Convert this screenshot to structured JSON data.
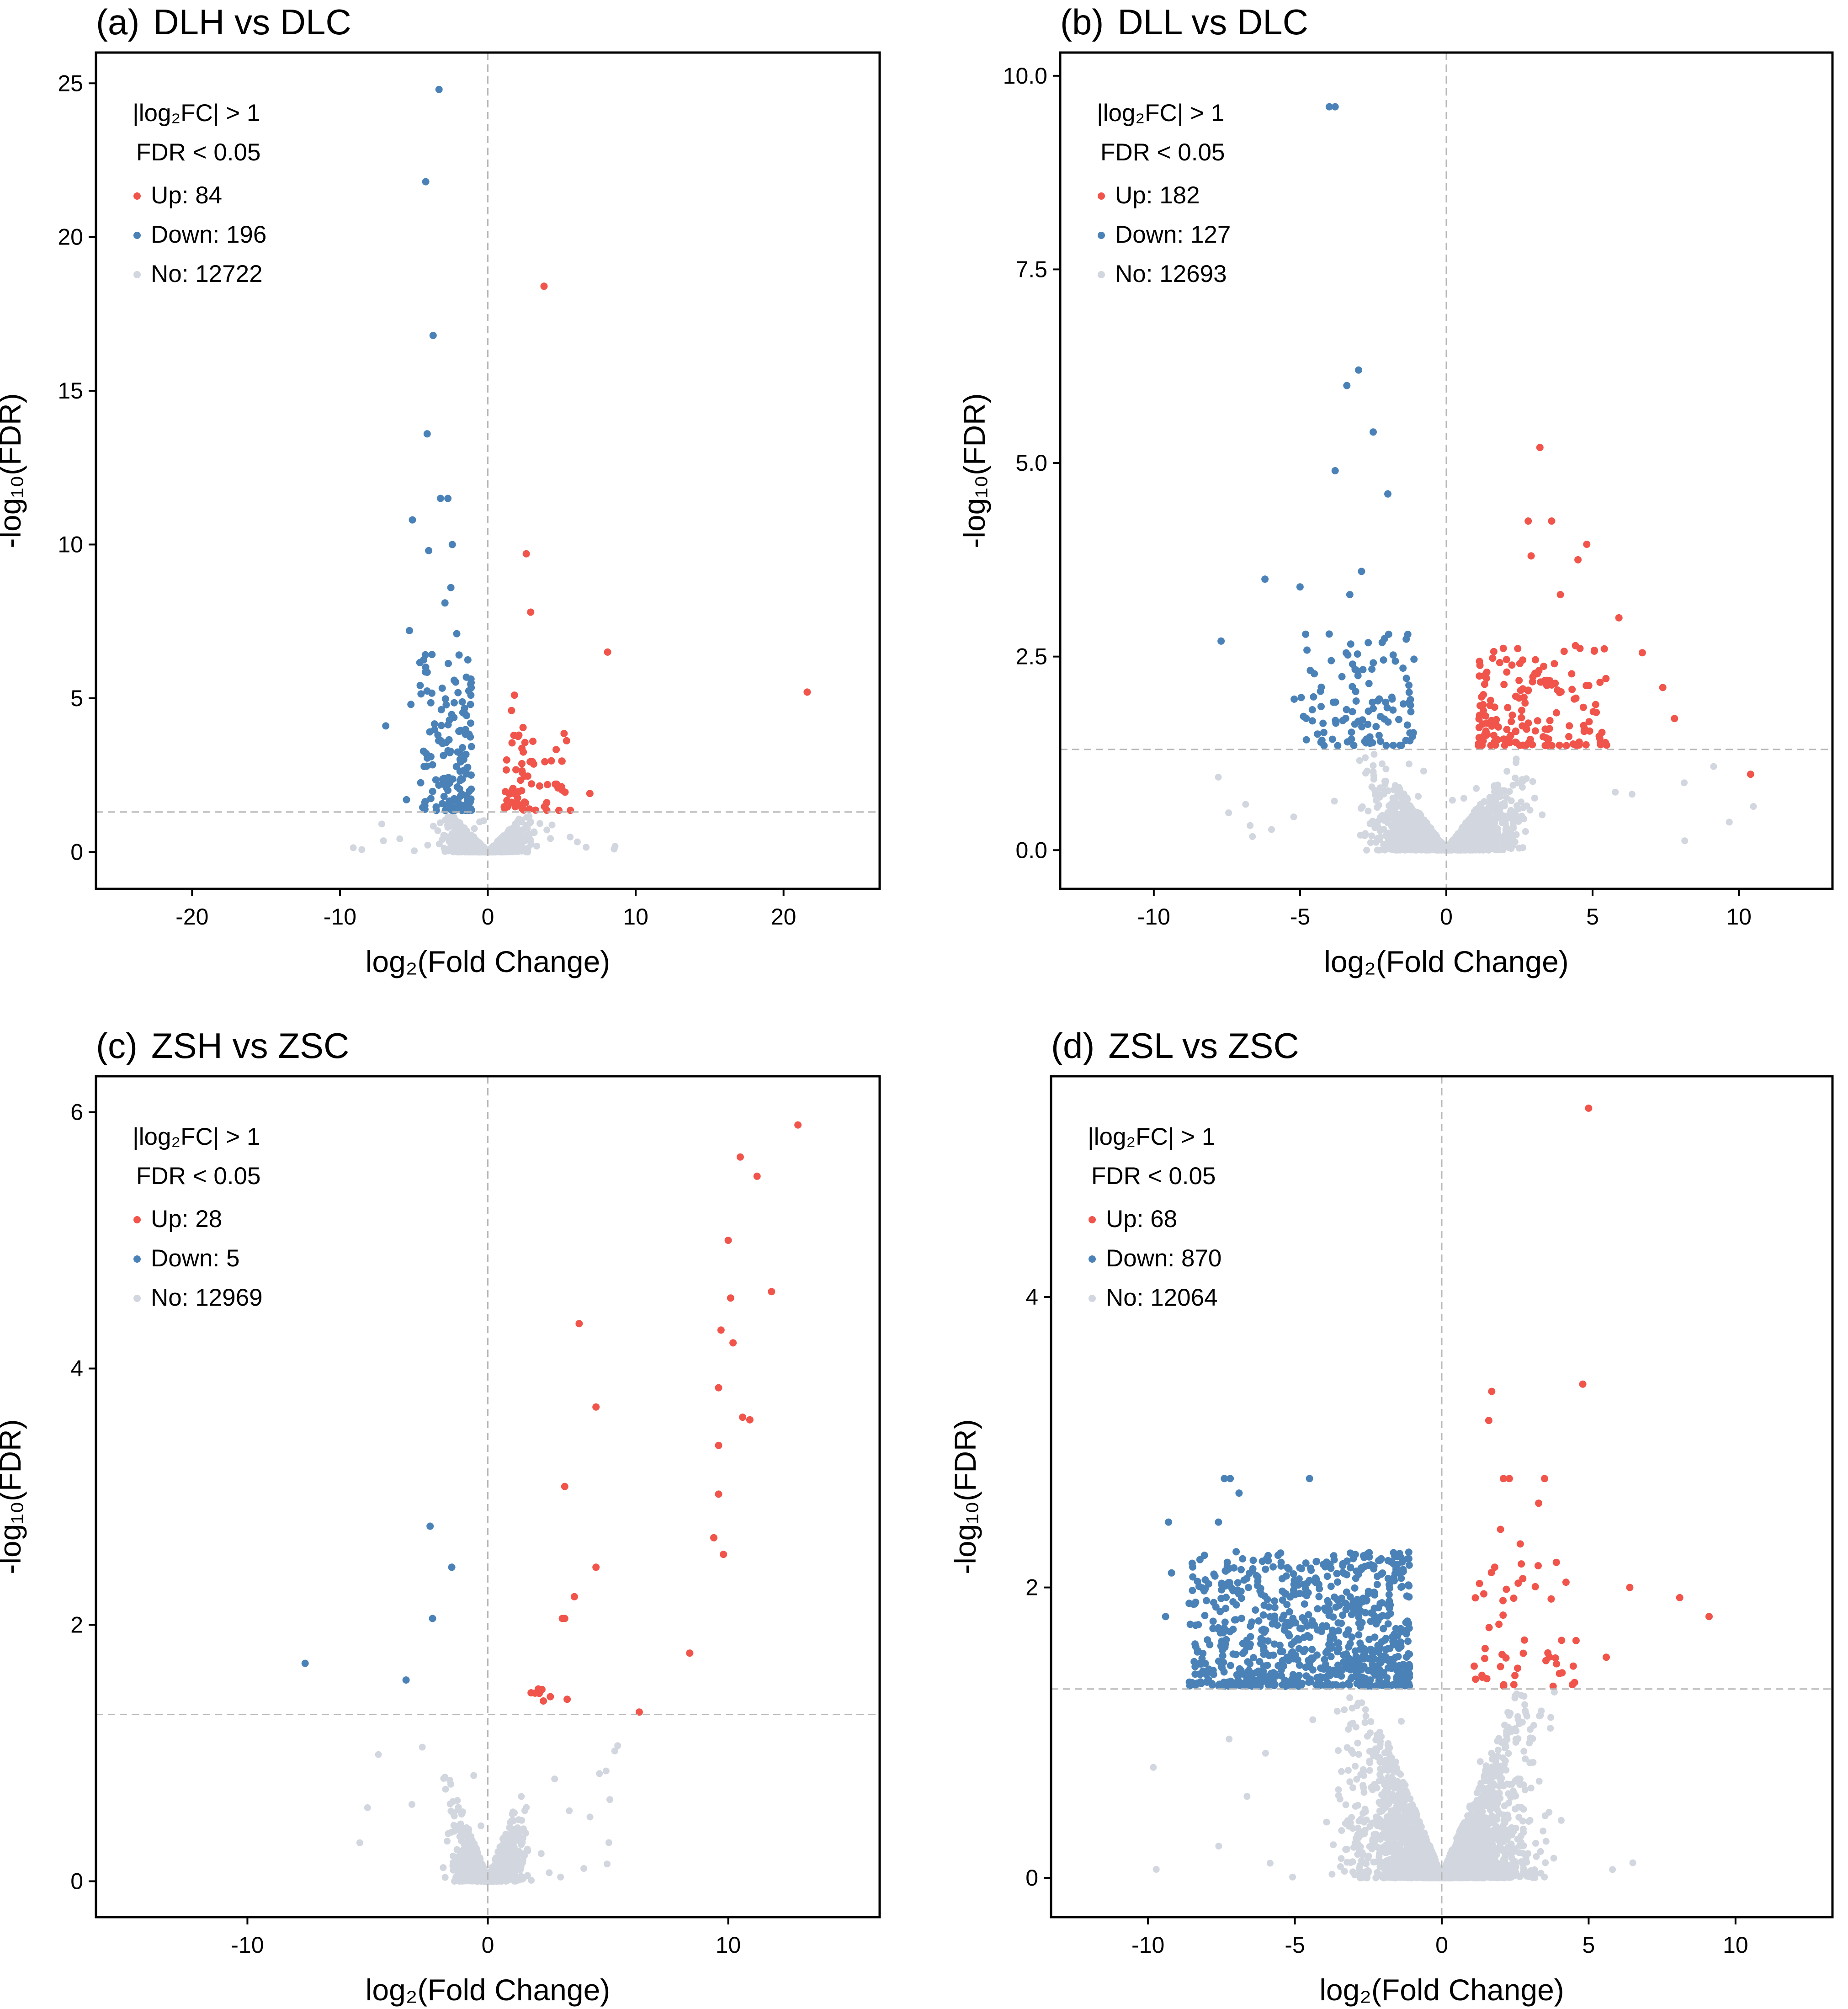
{
  "figure": {
    "x_label": "log₂(Fold Change)",
    "y_label": "-log₁₀(FDR)",
    "threshold_lines": {
      "fc_cut": 1,
      "fdr_line": 1.301
    },
    "colors": {
      "up": "#f0544a",
      "down": "#4a82b8",
      "no": "#d2d6de"
    }
  },
  "chart_data": [
    {
      "type": "scatter",
      "panel_label": "(a)",
      "title": "DLH vs DLC",
      "xlabel": "log₂(Fold Change)",
      "ylabel": "-log₁₀(FDR)",
      "xlim": [
        -26.5,
        26.5
      ],
      "ylim": [
        -1.2,
        26.0
      ],
      "xticks": [
        -20,
        -10,
        0,
        10,
        20
      ],
      "yticks": [
        0,
        5,
        10,
        15,
        20,
        25
      ],
      "legend": {
        "criteria": [
          "|log₂FC| > 1",
          "FDR < 0.05"
        ],
        "up": "Up: 84",
        "down": "Down: 196",
        "no": "No: 12722"
      },
      "cloud": {
        "xrange": [
          -9.5,
          9.5
        ],
        "xspread": 2.8,
        "ymax": 1.25,
        "n": 1200
      },
      "up_cluster": {
        "xrange": [
          1.1,
          5.6
        ],
        "yrange": [
          1.35,
          4.1
        ],
        "n": 70
      },
      "down_cluster": {
        "xrange": [
          -4.6,
          -1.1
        ],
        "yrange": [
          1.35,
          6.5
        ],
        "n": 150
      },
      "outliers_up": [
        [
          3.8,
          18.4
        ],
        [
          2.6,
          9.7
        ],
        [
          2.9,
          7.8
        ],
        [
          8.1,
          6.5
        ],
        [
          21.6,
          5.2
        ],
        [
          1.8,
          5.1
        ],
        [
          6.9,
          1.9
        ],
        [
          1.6,
          4.6
        ],
        [
          2.1,
          3.8
        ]
      ],
      "outliers_down": [
        [
          -3.3,
          24.8
        ],
        [
          -4.2,
          21.8
        ],
        [
          -3.7,
          16.8
        ],
        [
          -4.1,
          13.6
        ],
        [
          -3.2,
          11.5
        ],
        [
          -2.7,
          11.5
        ],
        [
          -5.1,
          10.8
        ],
        [
          -4.0,
          9.8
        ],
        [
          -2.4,
          10.0
        ],
        [
          -5.3,
          7.2
        ],
        [
          -2.1,
          7.1
        ],
        [
          -2.5,
          8.6
        ],
        [
          -6.9,
          4.1
        ],
        [
          -5.2,
          4.8
        ],
        [
          -5.5,
          1.7
        ],
        [
          -2.9,
          8.1
        ]
      ]
    },
    {
      "type": "scatter",
      "panel_label": "(b)",
      "title": "DLL vs DLC",
      "xlabel": "log₂(Fold Change)",
      "ylabel": "-log₁₀(FDR)",
      "xlim": [
        -13.2,
        13.2
      ],
      "ylim": [
        -0.5,
        10.3
      ],
      "xticks": [
        -10,
        -5,
        0,
        5,
        10
      ],
      "yticks": [
        0,
        2.5,
        5.0,
        7.5,
        10.0
      ],
      "ytick_labels": [
        "0.0",
        "2.5",
        "5.0",
        "7.5",
        "10.0"
      ],
      "legend": {
        "criteria": [
          "|log₂FC| > 1",
          "FDR < 0.05"
        ],
        "up": "Up: 182",
        "down": "Down: 127",
        "no": "No: 12693"
      },
      "cloud": {
        "xrange": [
          -8,
          10.5
        ],
        "xspread": 2.6,
        "ymax": 1.3,
        "n": 1800
      },
      "up_cluster": {
        "xrange": [
          1.1,
          5.5
        ],
        "yrange": [
          1.35,
          2.7
        ],
        "n": 160
      },
      "down_cluster": {
        "xrange": [
          -5.0,
          -1.1
        ],
        "yrange": [
          1.35,
          2.8
        ],
        "n": 110
      },
      "outliers_up": [
        [
          3.2,
          5.2
        ],
        [
          2.8,
          4.25
        ],
        [
          3.6,
          4.25
        ],
        [
          4.8,
          3.95
        ],
        [
          2.9,
          3.8
        ],
        [
          4.5,
          3.75
        ],
        [
          5.9,
          3.0
        ],
        [
          6.7,
          2.55
        ],
        [
          7.4,
          2.1
        ],
        [
          7.8,
          1.7
        ],
        [
          5.4,
          2.6
        ],
        [
          3.9,
          3.3
        ],
        [
          10.4,
          0.98
        ]
      ],
      "outliers_down": [
        [
          -4.0,
          9.6
        ],
        [
          -3.8,
          9.6
        ],
        [
          -3.0,
          6.2
        ],
        [
          -3.4,
          6.0
        ],
        [
          -2.5,
          5.4
        ],
        [
          -3.8,
          4.9
        ],
        [
          -2.0,
          4.6
        ],
        [
          -6.2,
          3.5
        ],
        [
          -2.9,
          3.6
        ],
        [
          -5.0,
          3.4
        ],
        [
          -7.7,
          2.7
        ],
        [
          -5.2,
          1.95
        ],
        [
          -3.3,
          3.3
        ]
      ]
    },
    {
      "type": "scatter",
      "panel_label": "(c)",
      "title": "ZSH vs ZSC",
      "xlabel": "log₂(Fold Change)",
      "ylabel": "-log₁₀(FDR)",
      "xlim": [
        -16.3,
        16.3
      ],
      "ylim": [
        -0.28,
        6.28
      ],
      "xticks": [
        -10,
        0,
        10
      ],
      "yticks": [
        0,
        2,
        4,
        6
      ],
      "legend": {
        "criteria": [
          "|log₂FC| > 1",
          "FDR < 0.05"
        ],
        "up": "Up: 28",
        "down": "Down: 5",
        "no": "No: 12969"
      },
      "cloud": {
        "xrange": [
          -5.5,
          5.5
        ],
        "xspread": 1.6,
        "ymax": 1.2,
        "n": 900
      },
      "up_cluster": {
        "xrange": [
          1.8,
          3.4
        ],
        "yrange": [
          1.4,
          1.5
        ],
        "n": 4
      },
      "down_cluster": {
        "xrange": [
          -2.5,
          -2.0
        ],
        "yrange": [
          2.0,
          2.7
        ],
        "n": 0
      },
      "outliers_up": [
        [
          12.9,
          5.9
        ],
        [
          10.5,
          5.65
        ],
        [
          11.2,
          5.5
        ],
        [
          10.0,
          5.0
        ],
        [
          10.1,
          4.55
        ],
        [
          11.8,
          4.6
        ],
        [
          3.8,
          4.35
        ],
        [
          9.7,
          4.3
        ],
        [
          10.2,
          4.2
        ],
        [
          9.6,
          3.85
        ],
        [
          4.5,
          3.7
        ],
        [
          10.6,
          3.62
        ],
        [
          10.9,
          3.6
        ],
        [
          9.6,
          3.4
        ],
        [
          3.2,
          3.08
        ],
        [
          9.6,
          3.02
        ],
        [
          9.4,
          2.68
        ],
        [
          9.8,
          2.55
        ],
        [
          4.5,
          2.45
        ],
        [
          3.6,
          2.22
        ],
        [
          3.1,
          2.05
        ],
        [
          3.2,
          2.05
        ],
        [
          8.4,
          1.78
        ],
        [
          2.1,
          1.5
        ],
        [
          1.8,
          1.47
        ],
        [
          2.6,
          1.44
        ],
        [
          3.3,
          1.42
        ],
        [
          6.3,
          1.32
        ]
      ],
      "outliers_down": [
        [
          -2.4,
          2.77
        ],
        [
          -1.5,
          2.45
        ],
        [
          -2.3,
          2.05
        ],
        [
          -7.6,
          1.7
        ],
        [
          -3.4,
          1.57
        ]
      ]
    },
    {
      "type": "scatter",
      "panel_label": "(d)",
      "title": "ZSL vs ZSC",
      "xlabel": "log₂(Fold Change)",
      "ylabel": "-log₁₀(FDR)",
      "xlim": [
        -13.3,
        13.3
      ],
      "ylim": [
        -0.27,
        5.52
      ],
      "xticks": [
        -10,
        -5,
        0,
        5,
        10
      ],
      "yticks": [
        0,
        2,
        4
      ],
      "legend": {
        "criteria": [
          "|log₂FC| > 1",
          "FDR < 0.05"
        ],
        "up": "Up: 68",
        "down": "Down: 870",
        "no": "No: 12064"
      },
      "cloud": {
        "xrange": [
          -10.5,
          7.5
        ],
        "xspread": 3.2,
        "ymax": 1.28,
        "n": 2600
      },
      "up_cluster": {
        "xrange": [
          1.1,
          4.6
        ],
        "yrange": [
          1.32,
          2.3
        ],
        "n": 50
      },
      "down_cluster": {
        "xrange": [
          -8.6,
          -1.1
        ],
        "yrange": [
          1.32,
          2.25
        ],
        "n": 820
      },
      "outliers_up": [
        [
          5.0,
          5.3
        ],
        [
          4.8,
          3.4
        ],
        [
          1.7,
          3.35
        ],
        [
          1.6,
          3.15
        ],
        [
          3.5,
          2.75
        ],
        [
          2.3,
          2.75
        ],
        [
          2.1,
          2.75
        ],
        [
          3.3,
          2.58
        ],
        [
          2.0,
          2.4
        ],
        [
          6.4,
          2.0
        ],
        [
          8.1,
          1.93
        ],
        [
          9.1,
          1.8
        ],
        [
          5.6,
          1.52
        ]
      ],
      "outliers_down": [
        [
          -7.4,
          2.75
        ],
        [
          -7.2,
          2.75
        ],
        [
          -4.5,
          2.75
        ],
        [
          -6.9,
          2.65
        ],
        [
          -9.3,
          2.45
        ],
        [
          -7.6,
          2.45
        ],
        [
          -9.2,
          2.1
        ],
        [
          -9.4,
          1.8
        ]
      ]
    }
  ]
}
